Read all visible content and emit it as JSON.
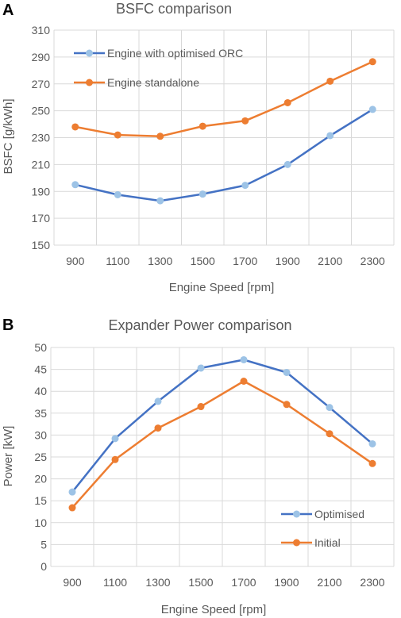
{
  "chart_data": [
    {
      "panel": "A",
      "type": "line",
      "title": "BSFC comparison",
      "xlabel": "Engine Speed [rpm]",
      "ylabel": "BSFC [g/kWh]",
      "categories": [
        "900",
        "1100",
        "1300",
        "1500",
        "1700",
        "1900",
        "2100",
        "2300"
      ],
      "ylim": [
        150,
        310
      ],
      "yticks": [
        "150",
        "170",
        "190",
        "210",
        "230",
        "250",
        "270",
        "290",
        "310"
      ],
      "grid": true,
      "legend_position": "top-left",
      "series": [
        {
          "name": "Engine with optimised ORC",
          "line_color": "#4472c4",
          "marker_color": "#9dc3e6",
          "values": [
            195,
            187.5,
            183,
            188,
            194.5,
            210,
            231.5,
            251
          ]
        },
        {
          "name": "Engine standalone",
          "line_color": "#ed7d31",
          "marker_color": "#ed7d31",
          "values": [
            238,
            232,
            231,
            238.5,
            242.5,
            256,
            272,
            286.5
          ]
        }
      ]
    },
    {
      "panel": "B",
      "type": "line",
      "title": "Expander Power comparison",
      "xlabel": "Engine Speed [rpm]",
      "ylabel": "Power [kW]",
      "categories": [
        "900",
        "1100",
        "1300",
        "1500",
        "1700",
        "1900",
        "2100",
        "2300"
      ],
      "ylim": [
        0,
        50
      ],
      "yticks": [
        "0",
        "5",
        "10",
        "15",
        "20",
        "25",
        "30",
        "35",
        "40",
        "45",
        "50"
      ],
      "grid": true,
      "legend_position": "bottom-right",
      "series": [
        {
          "name": "Optimised",
          "line_color": "#4472c4",
          "marker_color": "#9dc3e6",
          "values": [
            17,
            29.2,
            37.7,
            45.3,
            47.2,
            44.3,
            36.3,
            28
          ]
        },
        {
          "name": "Initial",
          "line_color": "#ed7d31",
          "marker_color": "#ed7d31",
          "values": [
            13.4,
            24.4,
            31.6,
            36.5,
            42.3,
            37,
            30.3,
            23.5
          ]
        }
      ]
    }
  ]
}
